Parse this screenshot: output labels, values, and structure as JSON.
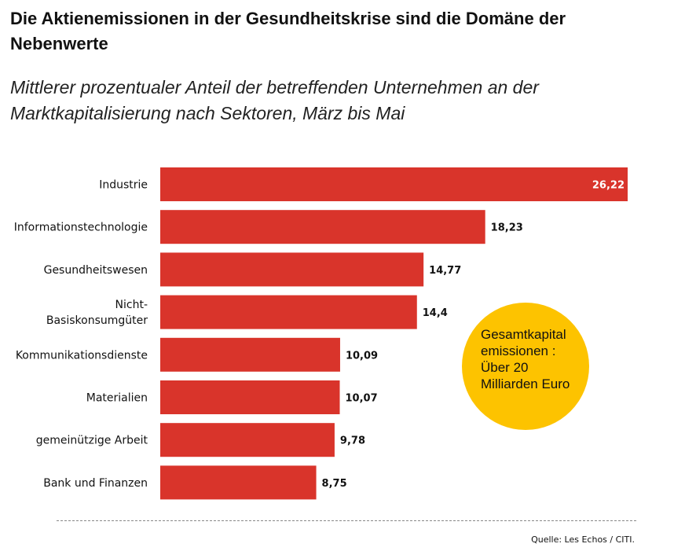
{
  "title": "Die Aktienemissionen in der Gesundheitskrise sind die Domäne der Nebenwerte",
  "subtitle": "Mittlerer prozentualer Anteil der betreffenden Unternehmen an der Marktkapitalisierung nach Sektoren, März bis Mai",
  "callout": "Gesamtkapital emissionen : Über 20 Milliarden Euro",
  "source": "Quelle: Les Echos / CITI.",
  "colors": {
    "bar": "#d9342b",
    "callout": "#fdc300"
  },
  "chart_data": {
    "type": "bar",
    "orientation": "horizontal",
    "categories": [
      [
        "Industrie"
      ],
      [
        "Informationstechnologie"
      ],
      [
        "Gesundheitswesen"
      ],
      [
        "Nicht-",
        "Basiskonsumgüter"
      ],
      [
        "Kommunikationsdienste"
      ],
      [
        "Materialien"
      ],
      [
        "gemeinützige Arbeit"
      ],
      [
        "Bank und Finanzen"
      ]
    ],
    "values": [
      26.22,
      18.23,
      14.77,
      14.4,
      10.09,
      10.07,
      9.78,
      8.75
    ],
    "value_labels": [
      "26,22",
      "18,23",
      "14,77",
      "14,4",
      "10,09",
      "10,07",
      "9,78",
      "8,75"
    ],
    "xlim": [
      0,
      26.22
    ],
    "grid": false,
    "axes_visible": false
  }
}
